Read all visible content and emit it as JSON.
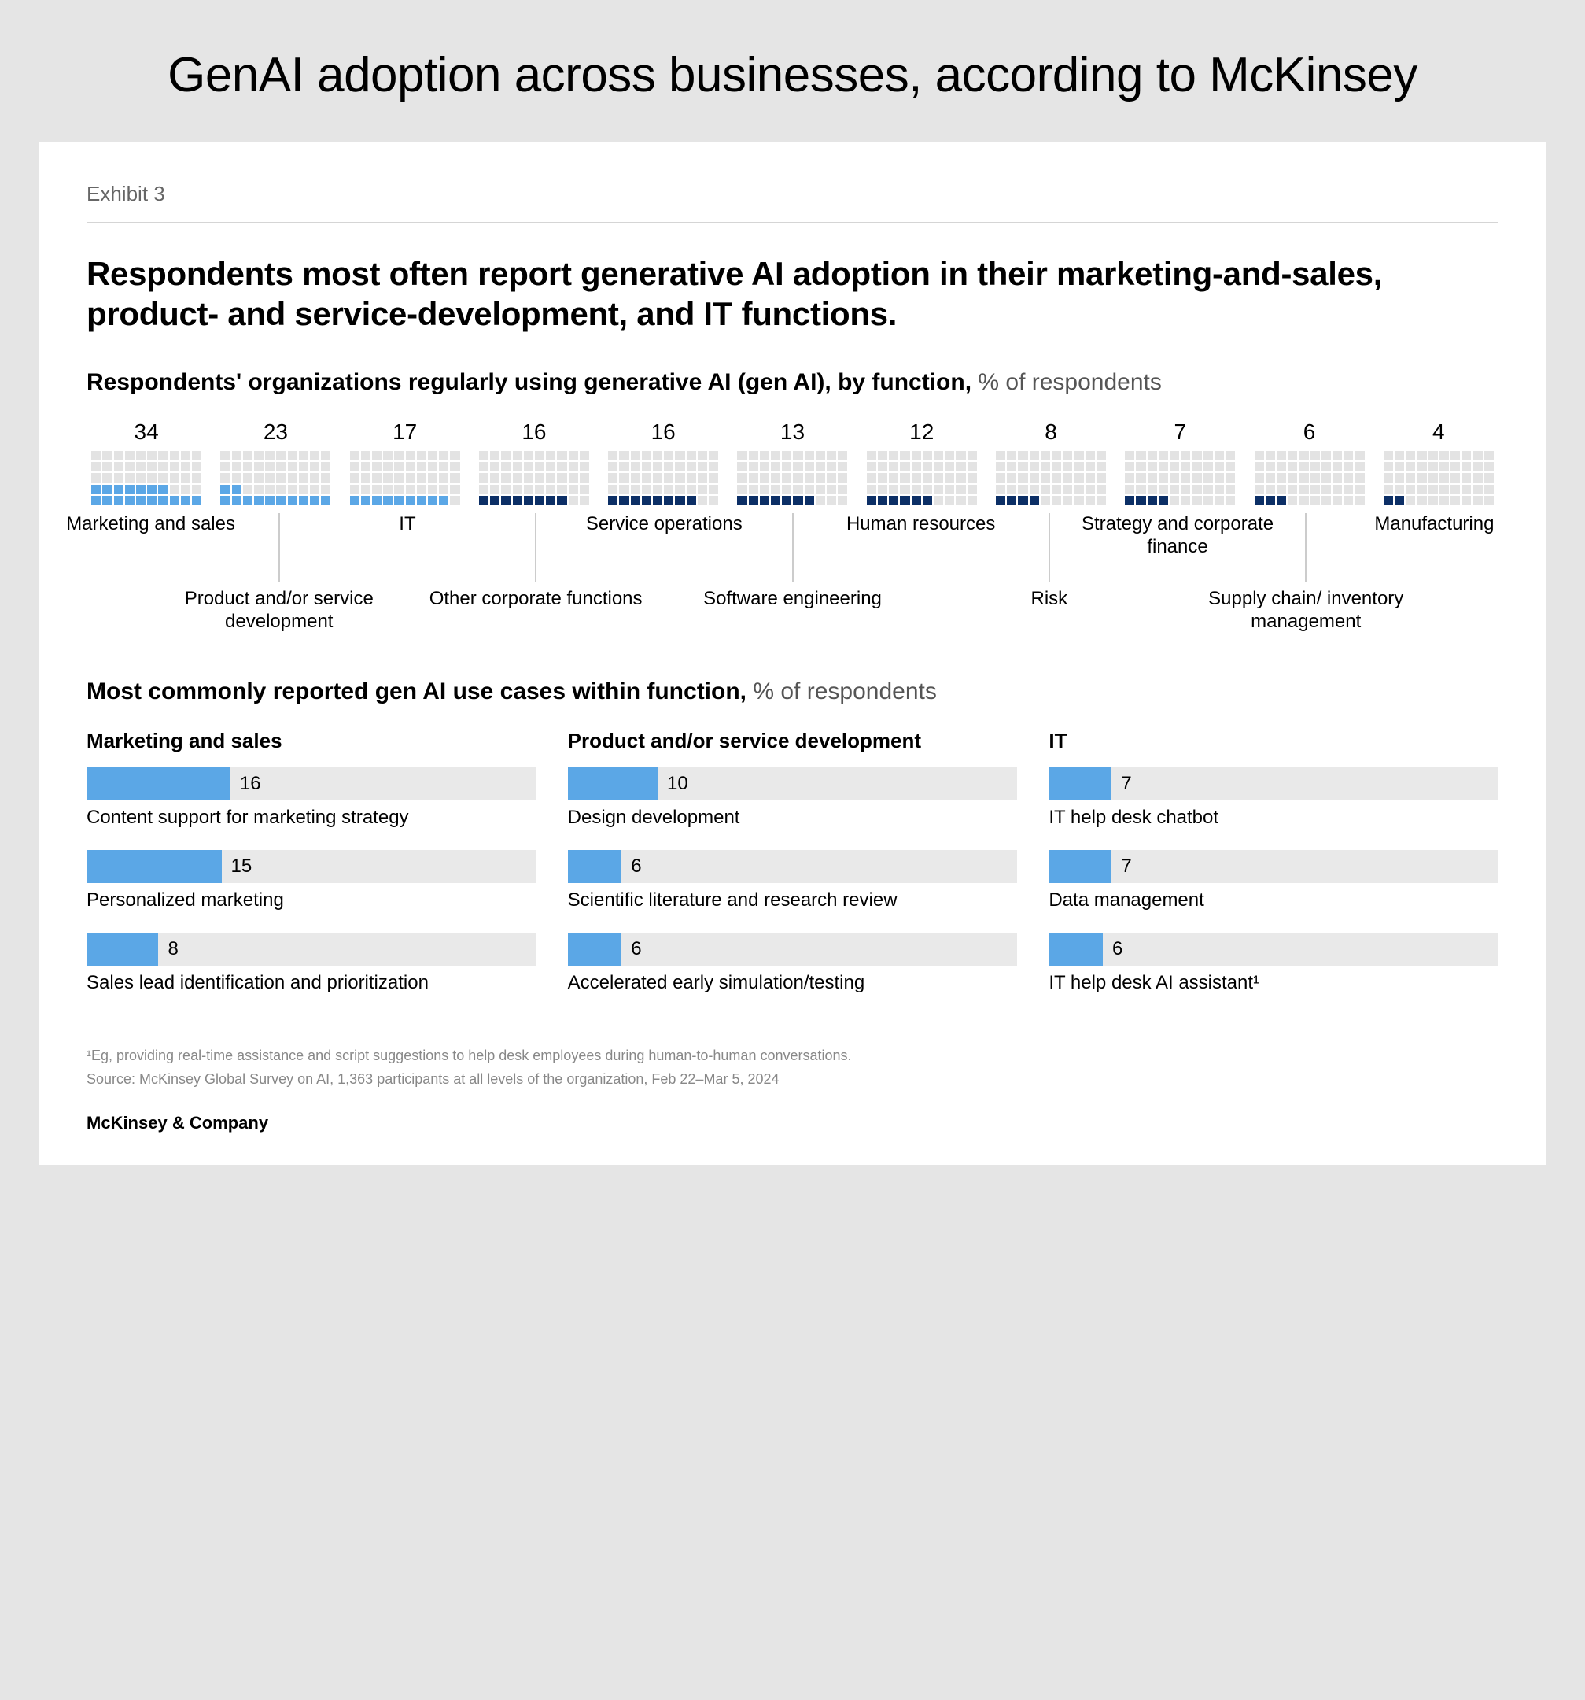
{
  "page": {
    "title": "GenAI adoption across businesses, according to McKinsey"
  },
  "exhibit": {
    "label": "Exhibit 3",
    "headline": "Respondents most often report generative AI adoption in their marketing-and-sales, product- and service-development, and IT functions.",
    "brand": "McKinsey & Company",
    "footnote1": "¹Eg, providing real-time assistance and script suggestions to help desk employees during human-to-human conversations.",
    "footnote2": "Source: McKinsey Global Survey on AI, 1,363 participants at all levels of the organization, Feb 22–Mar 5, 2024"
  },
  "waffle": {
    "subhead_bold": "Respondents' organizations regularly using generative AI (gen AI), by function,",
    "subhead_light": " % of respondents",
    "grid": {
      "rows": 5,
      "cols": 10,
      "total": 50
    },
    "colors": {
      "empty": "#e3e3e3",
      "light_blue": "#5ba7e6",
      "dark_blue": "#0c2f66"
    },
    "items": [
      {
        "value": 34,
        "label": "Marketing and sales",
        "fill_color": "light_blue",
        "tier": "top"
      },
      {
        "value": 23,
        "label": "Product and/or service development",
        "fill_color": "light_blue",
        "tier": "bottom"
      },
      {
        "value": 17,
        "label": "IT",
        "fill_color": "light_blue",
        "tier": "top"
      },
      {
        "value": 16,
        "label": "Other corporate functions",
        "fill_color": "dark_blue",
        "tier": "bottom"
      },
      {
        "value": 16,
        "label": "Service operations",
        "fill_color": "dark_blue",
        "tier": "top"
      },
      {
        "value": 13,
        "label": "Software engineering",
        "fill_color": "dark_blue",
        "tier": "bottom"
      },
      {
        "value": 12,
        "label": "Human resources",
        "fill_color": "dark_blue",
        "tier": "top"
      },
      {
        "value": 8,
        "label": "Risk",
        "fill_color": "dark_blue",
        "tier": "bottom"
      },
      {
        "value": 7,
        "label": "Strategy and corporate finance",
        "fill_color": "dark_blue",
        "tier": "top"
      },
      {
        "value": 6,
        "label": "Supply chain/ inventory management",
        "fill_color": "dark_blue",
        "tier": "bottom"
      },
      {
        "value": 4,
        "label": "Manufacturing",
        "fill_color": "dark_blue",
        "tier": "top"
      }
    ]
  },
  "usecases": {
    "subhead_bold": "Most commonly reported gen AI use cases within function,",
    "subhead_light": " % of respondents",
    "bar_scale_max": 50,
    "bar_track_color": "#e9e9e9",
    "bar_fill_color": "#5ba7e6",
    "columns": [
      {
        "title": "Marketing and sales",
        "rows": [
          {
            "value": 16,
            "label": "Content support for marketing strategy"
          },
          {
            "value": 15,
            "label": "Personalized marketing"
          },
          {
            "value": 8,
            "label": "Sales lead identification and prioritization"
          }
        ]
      },
      {
        "title": "Product and/or service development",
        "rows": [
          {
            "value": 10,
            "label": "Design development"
          },
          {
            "value": 6,
            "label": "Scientific literature and research review"
          },
          {
            "value": 6,
            "label": "Accelerated early simulation/testing"
          }
        ]
      },
      {
        "title": "IT",
        "rows": [
          {
            "value": 7,
            "label": "IT help desk chatbot"
          },
          {
            "value": 7,
            "label": "Data management"
          },
          {
            "value": 6,
            "label": "IT help desk AI assistant¹"
          }
        ]
      }
    ]
  }
}
